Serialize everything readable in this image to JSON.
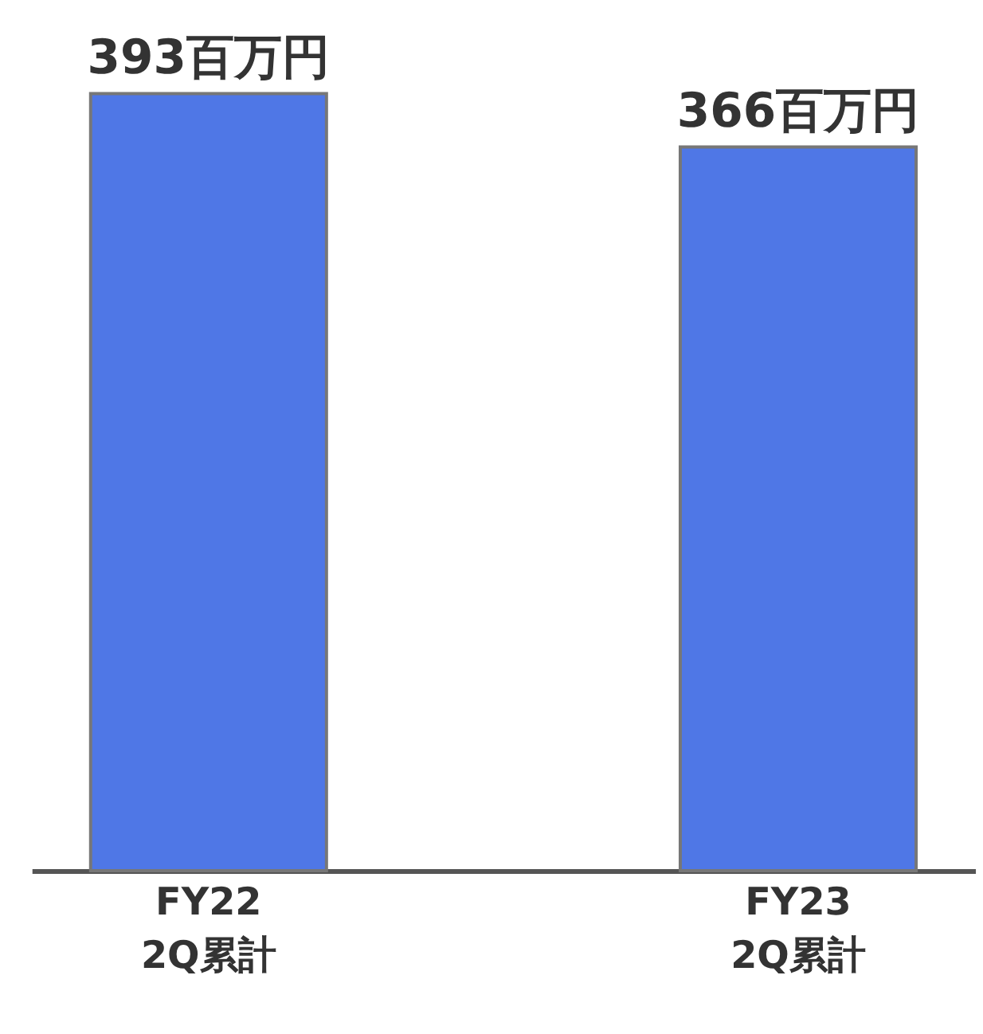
{
  "chart_data": {
    "type": "bar",
    "categories": [
      "FY22\n2Q累計",
      "FY23\n2Q累計"
    ],
    "values": [
      393,
      366
    ],
    "value_labels": [
      "393百万円",
      "366百万円"
    ],
    "color": "#4f77e6",
    "grid": false,
    "tick_labels": "x"
  }
}
